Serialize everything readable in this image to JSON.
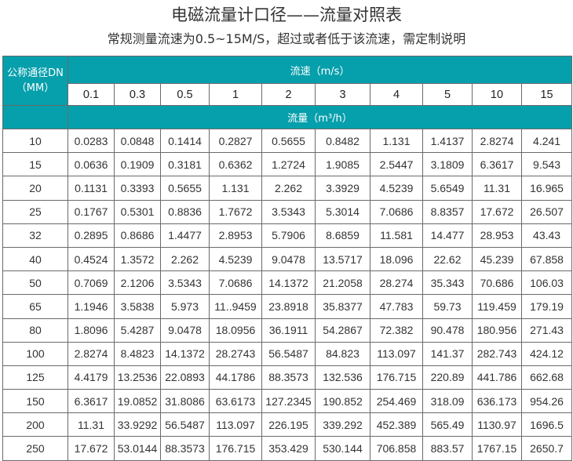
{
  "title": "电磁流量计口径——流量对照表",
  "subtitle": "常规测量流速为0.5~15M/S，超过或者低于该流速，需定制说明",
  "colors": {
    "header_bg": "#069fac",
    "header_text": "#ffffff",
    "border": "#6a6a6a"
  },
  "table": {
    "dn_header": [
      "公称通径DN",
      "（MM）"
    ],
    "velocity_header": "流速（m/s）",
    "flow_header": "流量（m³/h）",
    "velocities": [
      "0.1",
      "0.3",
      "0.5",
      "1",
      "2",
      "3",
      "4",
      "5",
      "10",
      "15"
    ],
    "rows": [
      {
        "dn": "10",
        "values": [
          "0.0283",
          "0.0848",
          "0.1414",
          "0.2827",
          "0.5655",
          "0.8482",
          "1.131",
          "1.4137",
          "2.8274",
          "4.241"
        ]
      },
      {
        "dn": "15",
        "values": [
          "0.0636",
          "0.1909",
          "0.3181",
          "0.6362",
          "1.2724",
          "1.9085",
          "2.5447",
          "3.1809",
          "6.3617",
          "9.543"
        ]
      },
      {
        "dn": "20",
        "values": [
          "0.1131",
          "0.3393",
          "0.5655",
          "1.131",
          "2.262",
          "3.3929",
          "4.5239",
          "5.6549",
          "11.31",
          "16.965"
        ]
      },
      {
        "dn": "25",
        "values": [
          "0.1767",
          "0.5301",
          "0.8836",
          "1.7672",
          "3.5343",
          "5.3014",
          "7.0686",
          "8.8357",
          "17.672",
          "26.507"
        ]
      },
      {
        "dn": "32",
        "values": [
          "0.2895",
          "0.8686",
          "1.4477",
          "2.8953",
          "5.7906",
          "8.6859",
          "11.581",
          "14.477",
          "28.953",
          "43.43"
        ]
      },
      {
        "dn": "40",
        "values": [
          "0.4524",
          "1.3572",
          "2.262",
          "4.5239",
          "9.0478",
          "13.5717",
          "18.096",
          "22.62",
          "45.239",
          "67.858"
        ]
      },
      {
        "dn": "50",
        "values": [
          "0.7069",
          "2.1206",
          "3.5343",
          "7.0686",
          "14.1372",
          "21.2058",
          "28.274",
          "35.343",
          "70.686",
          "106.03"
        ]
      },
      {
        "dn": "65",
        "values": [
          "1.1946",
          "3.5838",
          "5.973",
          "11..9459",
          "23.8918",
          "35.8377",
          "47.783",
          "59.73",
          "119.459",
          "179.19"
        ]
      },
      {
        "dn": "80",
        "values": [
          "1.8096",
          "5.4287",
          "9.0478",
          "18.0956",
          "36.1911",
          "54.2867",
          "72.382",
          "90.478",
          "180.956",
          "271.43"
        ]
      },
      {
        "dn": "100",
        "values": [
          "2.8274",
          "8.4823",
          "14.1372",
          "28.2743",
          "56.5487",
          "84.823",
          "113.097",
          "141.37",
          "282.743",
          "424.12"
        ]
      },
      {
        "dn": "125",
        "values": [
          "4.4179",
          "13.2536",
          "22.0893",
          "44.1786",
          "88.3573",
          "132.536",
          "176.715",
          "220.89",
          "441.786",
          "662.68"
        ]
      },
      {
        "dn": "150",
        "values": [
          "6.3617",
          "19.0852",
          "31.8086",
          "63.6173",
          "127.2345",
          "190.852",
          "254.469",
          "318.09",
          "636.173",
          "954.26"
        ]
      },
      {
        "dn": "200",
        "values": [
          "11.31",
          "33.9292",
          "56.5487",
          "113.097",
          "226.195",
          "339.292",
          "452.389",
          "565.49",
          "1130.97",
          "1696.5"
        ]
      },
      {
        "dn": "250",
        "values": [
          "17.672",
          "53.0144",
          "88.3573",
          "176.715",
          "353.429",
          "530.144",
          "706.858",
          "883.57",
          "1767.15",
          "2650.7"
        ]
      }
    ]
  }
}
